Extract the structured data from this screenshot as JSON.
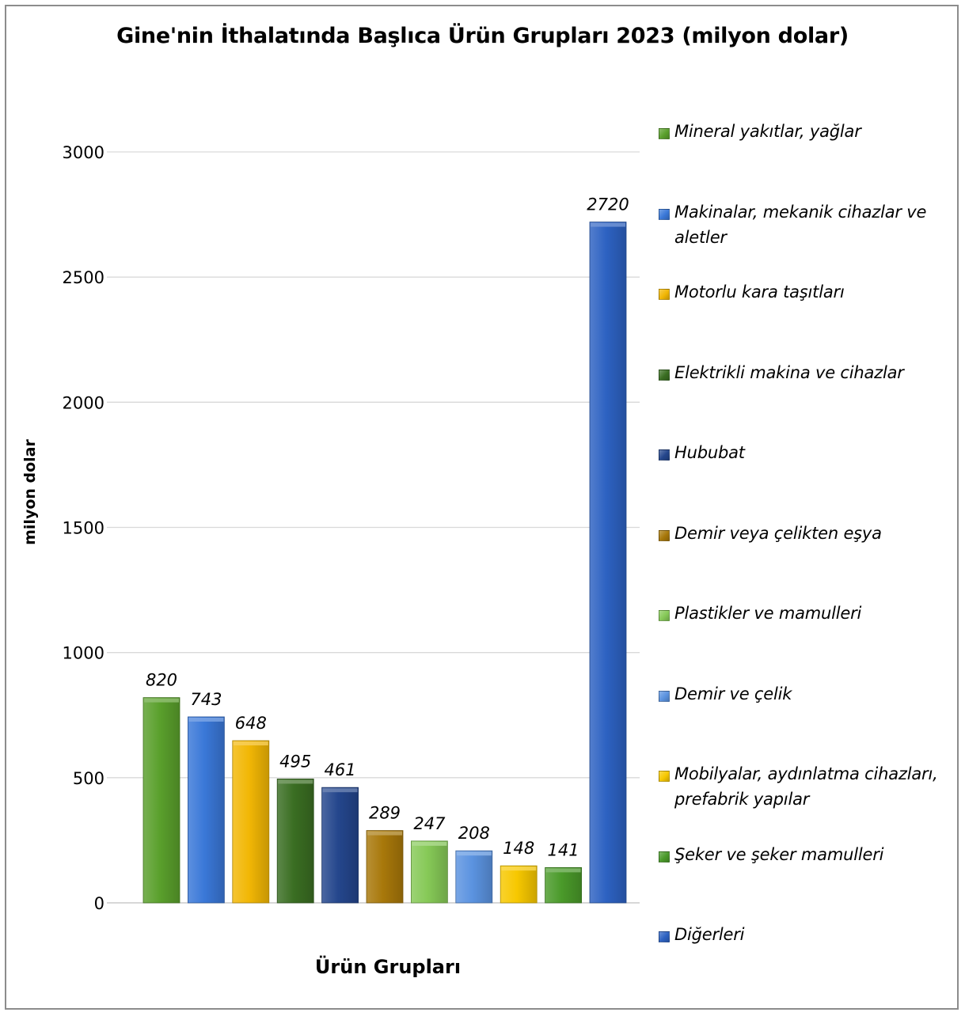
{
  "chart_data": {
    "type": "bar",
    "title": "Gine'nin İthalatında Başlıca Ürün Grupları 2023 (milyon dolar)",
    "xlabel": "Ürün Grupları",
    "ylabel": "milyon dolar",
    "ylim": [
      0,
      3000
    ],
    "yticks": [
      "0",
      "500",
      "1000",
      "1500",
      "2000",
      "2500",
      "3000"
    ],
    "grid": true,
    "legend_position": "right",
    "categories": [
      "Mineral yakıtlar, yağlar",
      "Makinalar, mekanik cihazlar ve aletler",
      "Motorlu kara taşıtları",
      "Elektrikli makina ve cihazlar",
      "Hububat",
      "Demir veya çelikten eşya",
      "Plastikler ve mamulleri",
      "Demir ve çelik",
      "Mobilyalar, aydınlatma cihazları, prefabrik yapılar",
      "Şeker ve şeker mamulleri",
      "Diğerleri"
    ],
    "values": [
      820,
      743,
      648,
      495,
      461,
      289,
      247,
      208,
      148,
      141,
      2720
    ],
    "data_labels": [
      "820",
      "743",
      "648",
      "495",
      "461",
      "289",
      "247",
      "208",
      "148",
      "141",
      "2720"
    ],
    "colors": [
      "#5aa02c",
      "#3a78d8",
      "#f2b705",
      "#3a6e22",
      "#24468c",
      "#a8780a",
      "#86c957",
      "#5b93e0",
      "#f7c800",
      "#4a9a2a",
      "#2d62c2"
    ]
  }
}
